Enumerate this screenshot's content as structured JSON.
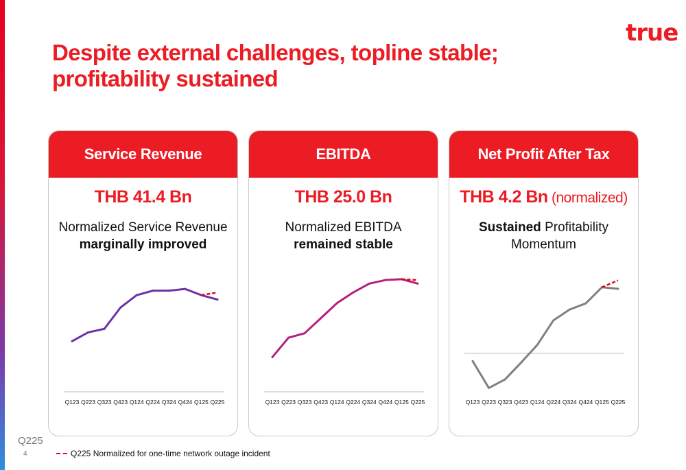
{
  "header": {
    "logo_text": "true",
    "title": "Despite external challenges, topline stable; profitability sustained"
  },
  "cards": [
    {
      "heading": "Service Revenue",
      "metric": "THB 41.4 Bn",
      "metric_note": "",
      "desc_line1_bold": "",
      "desc_line1": "Normalized Service Revenue",
      "desc_line2_bold": "marginally improved",
      "desc_line2": ""
    },
    {
      "heading": "EBITDA",
      "metric": "THB 25.0 Bn",
      "metric_note": "",
      "desc_line1_bold": "",
      "desc_line1": "Normalized EBITDA",
      "desc_line2_bold": "remained stable",
      "desc_line2": ""
    },
    {
      "heading": "Net Profit After Tax",
      "metric": "THB 4.2 Bn",
      "metric_note": " (normalized)",
      "desc_line1_bold": "Sustained",
      "desc_line1": " Profitability",
      "desc_line2_bold": "",
      "desc_line2": "Momentum"
    }
  ],
  "chart_data": [
    {
      "type": "line",
      "categories": [
        "Q123",
        "Q223",
        "Q323",
        "Q423",
        "Q124",
        "Q224",
        "Q324",
        "Q424",
        "Q125",
        "Q225"
      ],
      "series": [
        {
          "values": [
            27,
            37,
            41,
            65,
            79,
            84,
            84,
            86,
            79,
            74
          ]
        }
      ],
      "normalized": {
        "categories": [
          "Q125",
          "Q225"
        ],
        "values": [
          79,
          82
        ]
      },
      "ylim": [
        -30,
        100
      ],
      "color": "#6f2fa6",
      "baseline": true
    },
    {
      "type": "line",
      "categories": [
        "Q123",
        "Q223",
        "Q323",
        "Q423",
        "Q124",
        "Q224",
        "Q324",
        "Q424",
        "Q125",
        "Q225"
      ],
      "series": [
        {
          "values": [
            9,
            31,
            36,
            53,
            70,
            82,
            92,
            96,
            97,
            92
          ]
        }
      ],
      "normalized": {
        "categories": [
          "Q125",
          "Q225"
        ],
        "values": [
          97,
          96
        ]
      },
      "ylim": [
        -30,
        100
      ],
      "color": "#b3207e",
      "baseline": true
    },
    {
      "type": "line",
      "categories": [
        "Q123",
        "Q223",
        "Q323",
        "Q423",
        "Q124",
        "Q224",
        "Q324",
        "Q424",
        "Q125",
        "Q225"
      ],
      "series": [
        {
          "values": [
            -10,
            -45,
            -34,
            -12,
            11,
            43,
            57,
            65,
            86,
            84
          ]
        }
      ],
      "normalized": {
        "categories": [
          "Q125",
          "Q225"
        ],
        "values": [
          86,
          95
        ]
      },
      "ylim": [
        -50,
        100
      ],
      "color": "#808080",
      "zero_line": true
    }
  ],
  "footer": {
    "period": "Q225",
    "page_number": "4",
    "legend_label": "Q225 Normalized for one-time network outage incident"
  },
  "colors": {
    "brand_red": "#ec1c24",
    "dash": "#e8001f"
  }
}
